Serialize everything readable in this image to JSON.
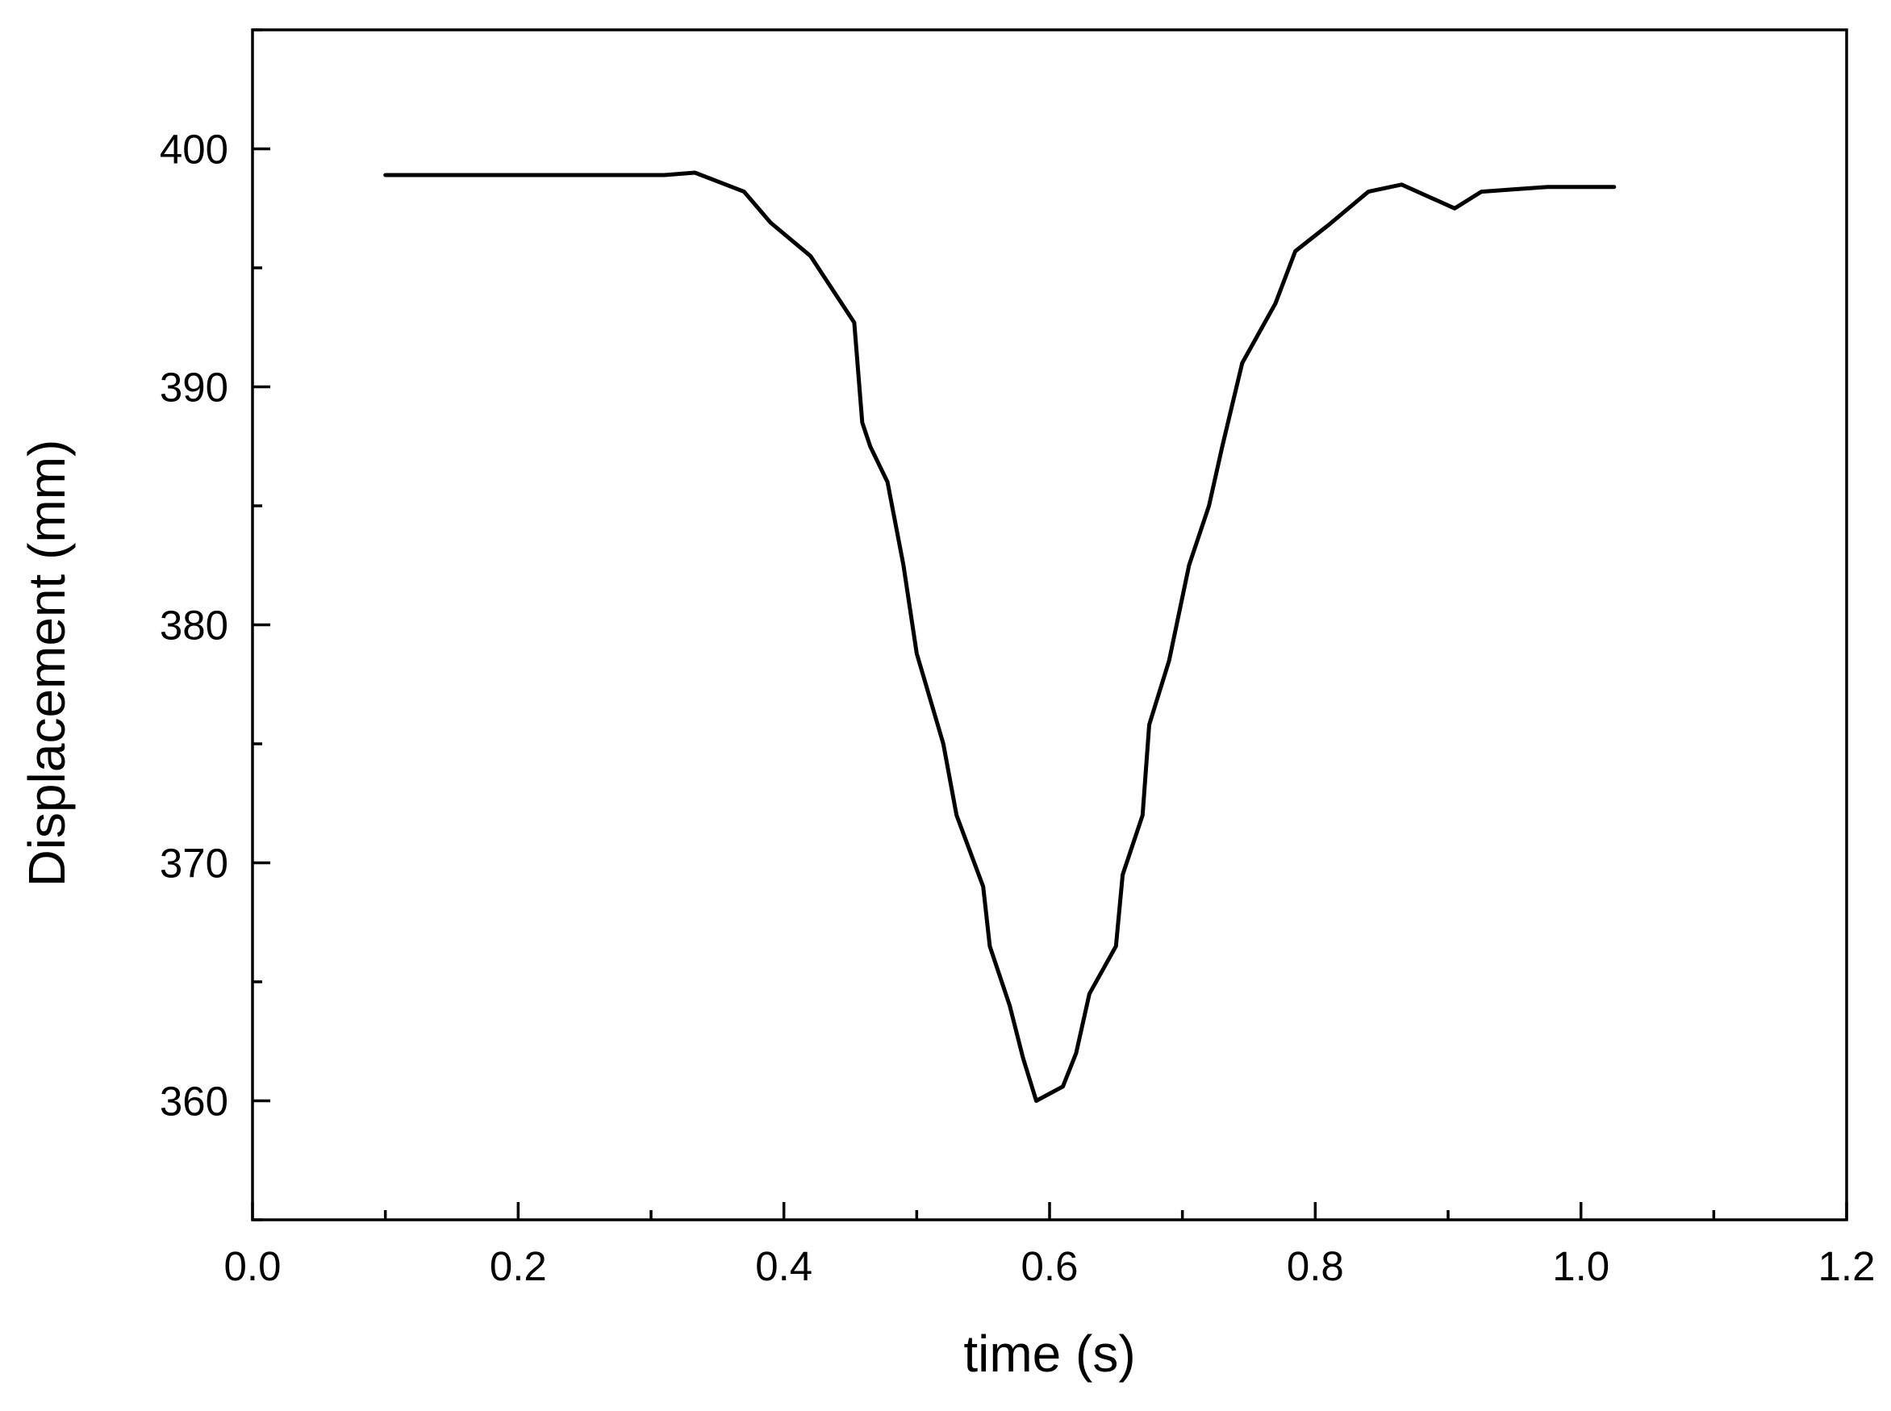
{
  "chart_data": {
    "type": "line",
    "title": "",
    "xlabel": "time (s)",
    "ylabel": "Displacement (mm)",
    "xlim": [
      0.0,
      1.2
    ],
    "ylim": [
      355,
      405
    ],
    "x_ticks": [
      "0.0",
      "0.2",
      "0.4",
      "0.6",
      "0.8",
      "1.0",
      "1.2"
    ],
    "y_ticks": [
      "360",
      "370",
      "380",
      "390",
      "400"
    ],
    "grid": false,
    "legend": "none",
    "series": [
      {
        "color": "#000000",
        "points": [
          [
            0.1,
            398.9
          ],
          [
            0.15,
            398.9
          ],
          [
            0.2,
            398.9
          ],
          [
            0.25,
            398.9
          ],
          [
            0.31,
            398.9
          ],
          [
            0.333,
            399.0
          ],
          [
            0.37,
            398.2
          ],
          [
            0.39,
            396.9
          ],
          [
            0.42,
            395.5
          ],
          [
            0.453,
            392.7
          ],
          [
            0.459,
            388.5
          ],
          [
            0.465,
            387.5
          ],
          [
            0.478,
            386.0
          ],
          [
            0.49,
            382.5
          ],
          [
            0.5,
            378.8
          ],
          [
            0.52,
            375.0
          ],
          [
            0.53,
            372.0
          ],
          [
            0.55,
            369.0
          ],
          [
            0.555,
            366.5
          ],
          [
            0.57,
            364.0
          ],
          [
            0.58,
            361.8
          ],
          [
            0.59,
            360.0
          ],
          [
            0.61,
            360.6
          ],
          [
            0.62,
            362.0
          ],
          [
            0.63,
            364.5
          ],
          [
            0.65,
            366.5
          ],
          [
            0.655,
            369.5
          ],
          [
            0.67,
            372.0
          ],
          [
            0.675,
            375.8
          ],
          [
            0.69,
            378.5
          ],
          [
            0.705,
            382.5
          ],
          [
            0.72,
            385.0
          ],
          [
            0.73,
            387.5
          ],
          [
            0.745,
            391.0
          ],
          [
            0.77,
            393.5
          ],
          [
            0.785,
            395.7
          ],
          [
            0.81,
            396.8
          ],
          [
            0.84,
            398.2
          ],
          [
            0.865,
            398.5
          ],
          [
            0.905,
            397.5
          ],
          [
            0.925,
            398.2
          ],
          [
            0.95,
            398.3
          ],
          [
            0.975,
            398.4
          ],
          [
            1.0,
            398.4
          ],
          [
            1.025,
            398.4
          ]
        ]
      }
    ]
  }
}
